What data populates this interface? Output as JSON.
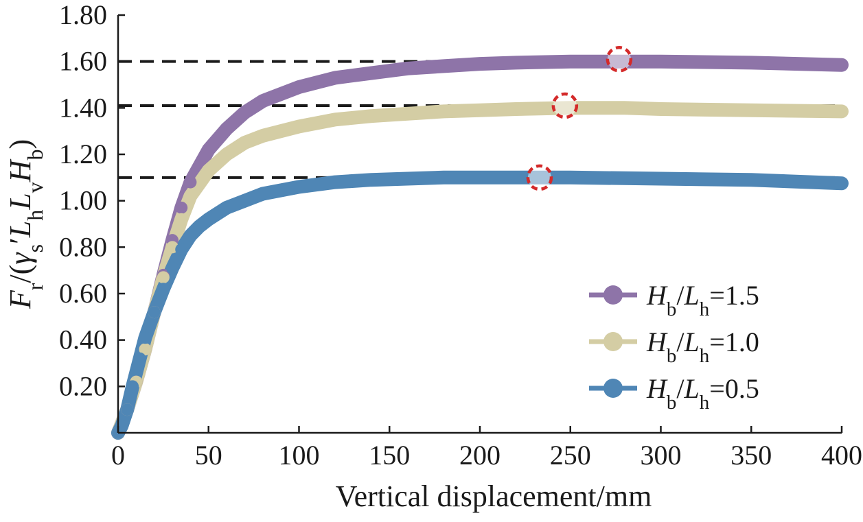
{
  "chart_data": {
    "type": "line",
    "xlabel": "Vertical displacement/mm",
    "ylabel": {
      "parts": [
        {
          "t": "F",
          "i": true
        },
        {
          "t": "r",
          "sub": true
        },
        {
          "t": "/(",
          "i": false
        },
        {
          "t": "γ",
          "i": true
        },
        {
          "t": "s",
          "sub": true
        },
        {
          "t": "′",
          "i": false
        },
        {
          "t": "L",
          "i": true
        },
        {
          "t": "h",
          "sub": true
        },
        {
          "t": "L",
          "i": true
        },
        {
          "t": "v",
          "sub": true
        },
        {
          "t": "H",
          "i": true
        },
        {
          "t": "b",
          "sub": true
        },
        {
          "t": ")",
          "i": false
        }
      ]
    },
    "xlim": [
      0,
      400
    ],
    "ylim": [
      0,
      1.8
    ],
    "xticks": [
      "0",
      "50",
      "100",
      "150",
      "200",
      "250",
      "300",
      "350",
      "400"
    ],
    "yticks": [
      "0.20",
      "0.40",
      "0.60",
      "0.80",
      "1.00",
      "1.20",
      "1.40",
      "1.60",
      "1.80"
    ],
    "grid": false,
    "legend_position": "bottom-right",
    "series": [
      {
        "name": "Hb/Lh=1.5",
        "legend": [
          {
            "t": "H",
            "i": true
          },
          {
            "t": "b",
            "sub": true
          },
          {
            "t": "/",
            "i": false
          },
          {
            "t": "L",
            "i": true
          },
          {
            "t": "h",
            "sub": true
          },
          {
            "t": "=1.5",
            "i": false
          }
        ],
        "color": "#8e74a8",
        "x": [
          0,
          5,
          10,
          15,
          20,
          25,
          30,
          35,
          40,
          50,
          60,
          70,
          80,
          100,
          120,
          140,
          160,
          180,
          200,
          220,
          250,
          280,
          300,
          350,
          400
        ],
        "y": [
          0,
          0.1,
          0.22,
          0.36,
          0.52,
          0.68,
          0.83,
          0.97,
          1.08,
          1.22,
          1.31,
          1.38,
          1.43,
          1.49,
          1.53,
          1.55,
          1.57,
          1.58,
          1.59,
          1.595,
          1.6,
          1.6,
          1.6,
          1.595,
          1.585
        ]
      },
      {
        "name": "Hb/Lh=1.0",
        "legend": [
          {
            "t": "H",
            "i": true
          },
          {
            "t": "b",
            "sub": true
          },
          {
            "t": "/",
            "i": false
          },
          {
            "t": "L",
            "i": true
          },
          {
            "t": "h",
            "sub": true
          },
          {
            "t": "=1.0",
            "i": false
          }
        ],
        "color": "#d4cda4",
        "x": [
          0,
          5,
          10,
          15,
          20,
          25,
          30,
          35,
          40,
          50,
          60,
          70,
          80,
          100,
          120,
          140,
          160,
          180,
          200,
          220,
          250,
          280,
          300,
          350,
          400
        ],
        "y": [
          0,
          0.1,
          0.22,
          0.36,
          0.52,
          0.67,
          0.8,
          0.92,
          1.02,
          1.13,
          1.2,
          1.25,
          1.28,
          1.32,
          1.35,
          1.365,
          1.375,
          1.385,
          1.39,
          1.395,
          1.4,
          1.4,
          1.395,
          1.39,
          1.385
        ]
      },
      {
        "name": "Hb/Lh=0.5",
        "legend": [
          {
            "t": "H",
            "i": true
          },
          {
            "t": "b",
            "sub": true
          },
          {
            "t": "/",
            "i": false
          },
          {
            "t": "L",
            "i": true
          },
          {
            "t": "h",
            "sub": true
          },
          {
            "t": "=0.5",
            "i": false
          }
        ],
        "color": "#4f86b5",
        "x": [
          0,
          2,
          5,
          8,
          12,
          15,
          20,
          25,
          30,
          35,
          40,
          45,
          50,
          60,
          70,
          80,
          100,
          120,
          140,
          160,
          180,
          200,
          230,
          250,
          300,
          350,
          400
        ],
        "y": [
          0,
          0.03,
          0.1,
          0.2,
          0.32,
          0.41,
          0.52,
          0.62,
          0.71,
          0.79,
          0.85,
          0.89,
          0.92,
          0.97,
          1.0,
          1.03,
          1.06,
          1.08,
          1.09,
          1.095,
          1.1,
          1.1,
          1.1,
          1.1,
          1.095,
          1.09,
          1.075
        ]
      }
    ],
    "reference_lines": [
      {
        "y": 1.6,
        "style": "dashed",
        "color": "#1a1a1a"
      },
      {
        "y": 1.41,
        "style": "dashed",
        "color": "#1a1a1a"
      },
      {
        "y": 1.1,
        "style": "dashed",
        "color": "#1a1a1a"
      }
    ],
    "markers": [
      {
        "x": 277,
        "y": 1.61,
        "style": "dashed-circle",
        "color": "#d42a2a"
      },
      {
        "x": 247,
        "y": 1.41,
        "style": "dashed-circle",
        "color": "#d42a2a"
      },
      {
        "x": 233,
        "y": 1.1,
        "style": "dashed-circle",
        "color": "#d42a2a"
      }
    ]
  }
}
